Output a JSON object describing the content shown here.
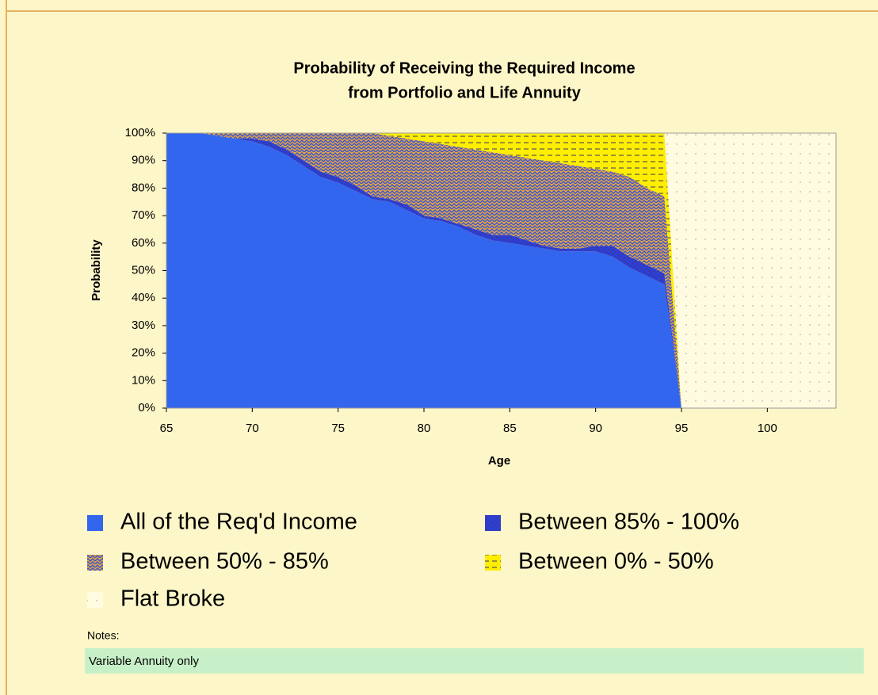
{
  "chart_data": {
    "type": "stacked-area",
    "title": "Probability of Receiving the Required Income",
    "subtitle": "from Portfolio and Life Annuity",
    "x_label": "Age",
    "y_label": "Probability",
    "x": [
      65,
      66,
      67,
      68,
      69,
      70,
      71,
      72,
      73,
      74,
      75,
      76,
      77,
      78,
      79,
      80,
      81,
      82,
      83,
      84,
      85,
      86,
      87,
      88,
      89,
      90,
      91,
      92,
      93,
      94,
      95,
      96,
      97,
      98,
      99,
      100,
      101,
      102,
      103,
      104
    ],
    "xlim": [
      65,
      104
    ],
    "xticks": [
      65,
      70,
      75,
      80,
      85,
      90,
      95,
      100
    ],
    "ylim": [
      0,
      100
    ],
    "yticks": [
      {
        "value": 0,
        "label": "0%"
      },
      {
        "value": 10,
        "label": "10%"
      },
      {
        "value": 20,
        "label": "20%"
      },
      {
        "value": 30,
        "label": "30%"
      },
      {
        "value": 40,
        "label": "40%"
      },
      {
        "value": 50,
        "label": "50%"
      },
      {
        "value": 60,
        "label": "60%"
      },
      {
        "value": 70,
        "label": "70%"
      },
      {
        "value": 80,
        "label": "80%"
      },
      {
        "value": 90,
        "label": "90%"
      },
      {
        "value": 100,
        "label": "100%"
      }
    ],
    "series": [
      {
        "name": "All of the Req'd Income",
        "color": "#3366ee",
        "values": [
          100,
          100,
          100,
          99,
          98,
          97,
          95,
          92,
          88,
          84,
          82,
          79,
          76,
          75,
          72,
          69,
          68,
          66,
          63,
          61,
          60,
          59,
          58,
          57,
          57,
          57,
          55,
          51,
          48,
          45,
          0,
          0,
          0,
          0,
          0,
          0,
          0,
          0,
          0,
          0
        ]
      },
      {
        "name": "Between 85% - 100%",
        "color": "#4433aa",
        "values": [
          0,
          0,
          0,
          0,
          0,
          1,
          2,
          2,
          2,
          2,
          2,
          2,
          1,
          1,
          2,
          1,
          1,
          1,
          2,
          2,
          3,
          2,
          1,
          1,
          1,
          2,
          4,
          4,
          4,
          4,
          0,
          0,
          0,
          0,
          0,
          0,
          0,
          0,
          0,
          0
        ]
      },
      {
        "name": "Between 50% - 85%",
        "color": "#e8a33a",
        "values": [
          0,
          0,
          0,
          1,
          2,
          2,
          3,
          6,
          10,
          14,
          16,
          19,
          23,
          23,
          24,
          27,
          27,
          28,
          29,
          30,
          29,
          30,
          31,
          31,
          30,
          28,
          27,
          29,
          28,
          28,
          0,
          0,
          0,
          0,
          0,
          0,
          0,
          0,
          0,
          0
        ]
      },
      {
        "name": "Between 0% - 50%",
        "color": "#ffee00",
        "values": [
          0,
          0,
          0,
          0,
          0,
          0,
          0,
          0,
          0,
          0,
          0,
          0,
          0,
          1,
          2,
          3,
          4,
          5,
          6,
          7,
          8,
          9,
          10,
          11,
          12,
          13,
          14,
          16,
          20,
          23,
          0,
          0,
          0,
          0,
          0,
          0,
          0,
          0,
          0,
          0
        ]
      },
      {
        "name": "Flat Broke",
        "color": "#fffbe0",
        "values": [
          0,
          0,
          0,
          0,
          0,
          0,
          0,
          0,
          0,
          0,
          0,
          0,
          0,
          0,
          0,
          0,
          0,
          0,
          0,
          0,
          0,
          0,
          0,
          0,
          0,
          0,
          0,
          0,
          0,
          0,
          100,
          100,
          100,
          100,
          100,
          100,
          100,
          100,
          100,
          100
        ]
      }
    ],
    "notes_label": "Notes:",
    "notes": "Variable Annuity only"
  }
}
